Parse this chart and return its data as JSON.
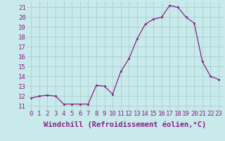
{
  "hours": [
    0,
    1,
    2,
    3,
    4,
    5,
    6,
    7,
    8,
    9,
    10,
    11,
    12,
    13,
    14,
    15,
    16,
    17,
    18,
    19,
    20,
    21,
    22,
    23
  ],
  "values": [
    11.8,
    12.0,
    12.1,
    12.0,
    11.2,
    11.2,
    11.2,
    11.2,
    13.1,
    13.0,
    12.2,
    14.5,
    15.8,
    17.8,
    19.3,
    19.8,
    20.0,
    21.2,
    21.0,
    20.0,
    19.4,
    15.5,
    14.0,
    13.7
  ],
  "line_color": "#882288",
  "marker_color": "#882288",
  "bg_color": "#c8eaea",
  "grid_color": "#aacece",
  "xlabel": "Windchill (Refroidissement éolien,°C)",
  "ylabel_ticks": [
    11,
    12,
    13,
    14,
    15,
    16,
    17,
    18,
    19,
    20,
    21
  ],
  "ylim": [
    10.6,
    21.6
  ],
  "xlim": [
    -0.5,
    23.5
  ],
  "tick_fontsize": 6.5,
  "xlabel_fontsize": 7.5
}
